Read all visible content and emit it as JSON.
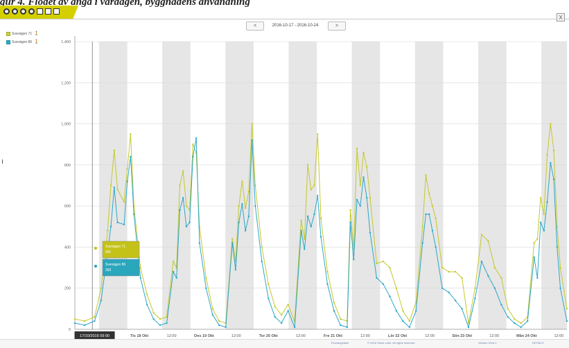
{
  "caption": "gur 4. Flödet av ånga i vardagen, byggnadens användning",
  "toolbar": {
    "icons": [
      "home-icon",
      "zoom-in-icon",
      "zoom-out-icon",
      "settings-icon",
      "save-icon",
      "print-icon",
      "table-icon"
    ]
  },
  "nav": {
    "prev": "<",
    "range": "2016-10-17 - 2016-10-24",
    "next": ">"
  },
  "close_label": "X",
  "legend": [
    {
      "label": "Svevägen 71",
      "color": "#cfd33a"
    },
    {
      "label": "Svevägen 86",
      "color": "#2ab0c8"
    }
  ],
  "tooltip": [
    {
      "name": "Svevägen 71",
      "value": "491",
      "color": "#c4c218"
    },
    {
      "name": "Svevägen 86",
      "value": "393",
      "color": "#2aa6bd"
    }
  ],
  "footer": [
    "Exchangeable",
    "© 2016 Stone cube. All rights reserved",
    "Version 2016.1",
    "DETAILS"
  ],
  "chart_data": {
    "type": "line",
    "yticks": [
      "1,400",
      "1,200",
      "1,000",
      "800",
      "600",
      "400",
      "200",
      "0"
    ],
    "ylim": [
      0,
      1400
    ],
    "xlim": [
      0,
      168
    ],
    "xticks": [
      {
        "x": 12,
        "label": "17/10/2016 09:00",
        "highlight": true
      },
      {
        "x": 24,
        "label": "Tis 18 Okt"
      },
      {
        "x": 36,
        "label": "12:00"
      },
      {
        "x": 48,
        "label": "Ons 19 Okt"
      },
      {
        "x": 60,
        "label": "12:00"
      },
      {
        "x": 72,
        "label": "Tor 20 Okt"
      },
      {
        "x": 84,
        "label": "12:00"
      },
      {
        "x": 96,
        "label": "Fre 21 Okt"
      },
      {
        "x": 108,
        "label": "12:00"
      },
      {
        "x": 120,
        "label": "Lör 22 Okt"
      },
      {
        "x": 132,
        "label": "12:00"
      },
      {
        "x": 144,
        "label": "Sön 23 Okt"
      },
      {
        "x": 156,
        "label": "12:00"
      },
      {
        "x": 168,
        "label": "Mån 24 Okt"
      },
      {
        "x": 180,
        "label": "12:00"
      }
    ],
    "series": [
      {
        "name": "Svevägen 71",
        "color": "#c4c82a",
        "values": [
          [
            0,
            50
          ],
          [
            3,
            40
          ],
          [
            6,
            60
          ],
          [
            8,
            200
          ],
          [
            10,
            480
          ],
          [
            11,
            700
          ],
          [
            12,
            870
          ],
          [
            13,
            680
          ],
          [
            15,
            620
          ],
          [
            16,
            780
          ],
          [
            17,
            950
          ],
          [
            18,
            600
          ],
          [
            20,
            300
          ],
          [
            22,
            170
          ],
          [
            24,
            80
          ],
          [
            26,
            50
          ],
          [
            28,
            60
          ],
          [
            30,
            330
          ],
          [
            31,
            300
          ],
          [
            32,
            700
          ],
          [
            33,
            770
          ],
          [
            34,
            600
          ],
          [
            35,
            580
          ],
          [
            36,
            900
          ],
          [
            37,
            860
          ],
          [
            38,
            500
          ],
          [
            40,
            250
          ],
          [
            42,
            100
          ],
          [
            44,
            40
          ],
          [
            46,
            30
          ],
          [
            48,
            440
          ],
          [
            49,
            330
          ],
          [
            50,
            600
          ],
          [
            51,
            720
          ],
          [
            52,
            590
          ],
          [
            53,
            670
          ],
          [
            54,
            1000
          ],
          [
            55,
            700
          ],
          [
            57,
            400
          ],
          [
            59,
            220
          ],
          [
            61,
            110
          ],
          [
            63,
            70
          ],
          [
            65,
            120
          ],
          [
            67,
            40
          ],
          [
            69,
            530
          ],
          [
            70,
            440
          ],
          [
            71,
            800
          ],
          [
            72,
            680
          ],
          [
            73,
            700
          ],
          [
            74,
            950
          ],
          [
            75,
            540
          ],
          [
            77,
            280
          ],
          [
            79,
            130
          ],
          [
            81,
            50
          ],
          [
            83,
            40
          ],
          [
            84,
            580
          ],
          [
            85,
            390
          ],
          [
            86,
            880
          ],
          [
            87,
            700
          ],
          [
            88,
            860
          ],
          [
            89,
            790
          ],
          [
            90,
            640
          ],
          [
            92,
            320
          ],
          [
            94,
            330
          ],
          [
            96,
            300
          ],
          [
            98,
            200
          ],
          [
            100,
            90
          ],
          [
            102,
            40
          ],
          [
            104,
            130
          ],
          [
            106,
            500
          ],
          [
            107,
            750
          ],
          [
            108,
            660
          ],
          [
            109,
            600
          ],
          [
            110,
            540
          ],
          [
            112,
            300
          ],
          [
            114,
            280
          ],
          [
            116,
            280
          ],
          [
            118,
            250
          ],
          [
            120,
            30
          ],
          [
            122,
            200
          ],
          [
            124,
            460
          ],
          [
            126,
            430
          ],
          [
            128,
            300
          ],
          [
            130,
            250
          ],
          [
            132,
            100
          ],
          [
            134,
            50
          ],
          [
            136,
            30
          ],
          [
            138,
            60
          ],
          [
            140,
            420
          ],
          [
            141,
            440
          ],
          [
            142,
            640
          ],
          [
            143,
            560
          ],
          [
            144,
            850
          ],
          [
            145,
            1000
          ],
          [
            146,
            870
          ],
          [
            147,
            500
          ],
          [
            148,
            300
          ],
          [
            150,
            100
          ]
        ]
      },
      {
        "name": "Svevägen 86",
        "color": "#2aa6c8",
        "values": [
          [
            0,
            30
          ],
          [
            3,
            20
          ],
          [
            6,
            40
          ],
          [
            8,
            140
          ],
          [
            10,
            380
          ],
          [
            11,
            500
          ],
          [
            12,
            690
          ],
          [
            13,
            520
          ],
          [
            15,
            510
          ],
          [
            16,
            720
          ],
          [
            17,
            840
          ],
          [
            18,
            560
          ],
          [
            20,
            250
          ],
          [
            22,
            120
          ],
          [
            24,
            50
          ],
          [
            26,
            20
          ],
          [
            28,
            30
          ],
          [
            30,
            280
          ],
          [
            31,
            250
          ],
          [
            32,
            580
          ],
          [
            33,
            640
          ],
          [
            34,
            500
          ],
          [
            35,
            520
          ],
          [
            36,
            840
          ],
          [
            37,
            930
          ],
          [
            38,
            420
          ],
          [
            40,
            200
          ],
          [
            42,
            70
          ],
          [
            44,
            20
          ],
          [
            46,
            10
          ],
          [
            48,
            420
          ],
          [
            49,
            290
          ],
          [
            50,
            520
          ],
          [
            51,
            610
          ],
          [
            52,
            480
          ],
          [
            53,
            550
          ],
          [
            54,
            920
          ],
          [
            55,
            600
          ],
          [
            57,
            330
          ],
          [
            59,
            150
          ],
          [
            61,
            60
          ],
          [
            63,
            30
          ],
          [
            65,
            90
          ],
          [
            67,
            10
          ],
          [
            69,
            480
          ],
          [
            70,
            390
          ],
          [
            71,
            550
          ],
          [
            72,
            500
          ],
          [
            73,
            560
          ],
          [
            74,
            650
          ],
          [
            75,
            450
          ],
          [
            77,
            220
          ],
          [
            79,
            90
          ],
          [
            81,
            20
          ],
          [
            83,
            10
          ],
          [
            84,
            520
          ],
          [
            85,
            340
          ],
          [
            86,
            630
          ],
          [
            87,
            600
          ],
          [
            88,
            740
          ],
          [
            89,
            640
          ],
          [
            90,
            470
          ],
          [
            92,
            250
          ],
          [
            94,
            220
          ],
          [
            96,
            160
          ],
          [
            98,
            90
          ],
          [
            100,
            40
          ],
          [
            102,
            10
          ],
          [
            104,
            90
          ],
          [
            106,
            420
          ],
          [
            107,
            560
          ],
          [
            108,
            560
          ],
          [
            109,
            480
          ],
          [
            110,
            400
          ],
          [
            112,
            200
          ],
          [
            114,
            180
          ],
          [
            116,
            140
          ],
          [
            118,
            100
          ],
          [
            120,
            10
          ],
          [
            122,
            150
          ],
          [
            124,
            330
          ],
          [
            126,
            260
          ],
          [
            128,
            200
          ],
          [
            130,
            120
          ],
          [
            132,
            60
          ],
          [
            134,
            30
          ],
          [
            136,
            10
          ],
          [
            138,
            40
          ],
          [
            140,
            350
          ],
          [
            141,
            250
          ],
          [
            142,
            520
          ],
          [
            143,
            480
          ],
          [
            144,
            620
          ],
          [
            145,
            810
          ],
          [
            146,
            730
          ],
          [
            147,
            400
          ],
          [
            148,
            200
          ],
          [
            150,
            40
          ]
        ]
      }
    ]
  }
}
